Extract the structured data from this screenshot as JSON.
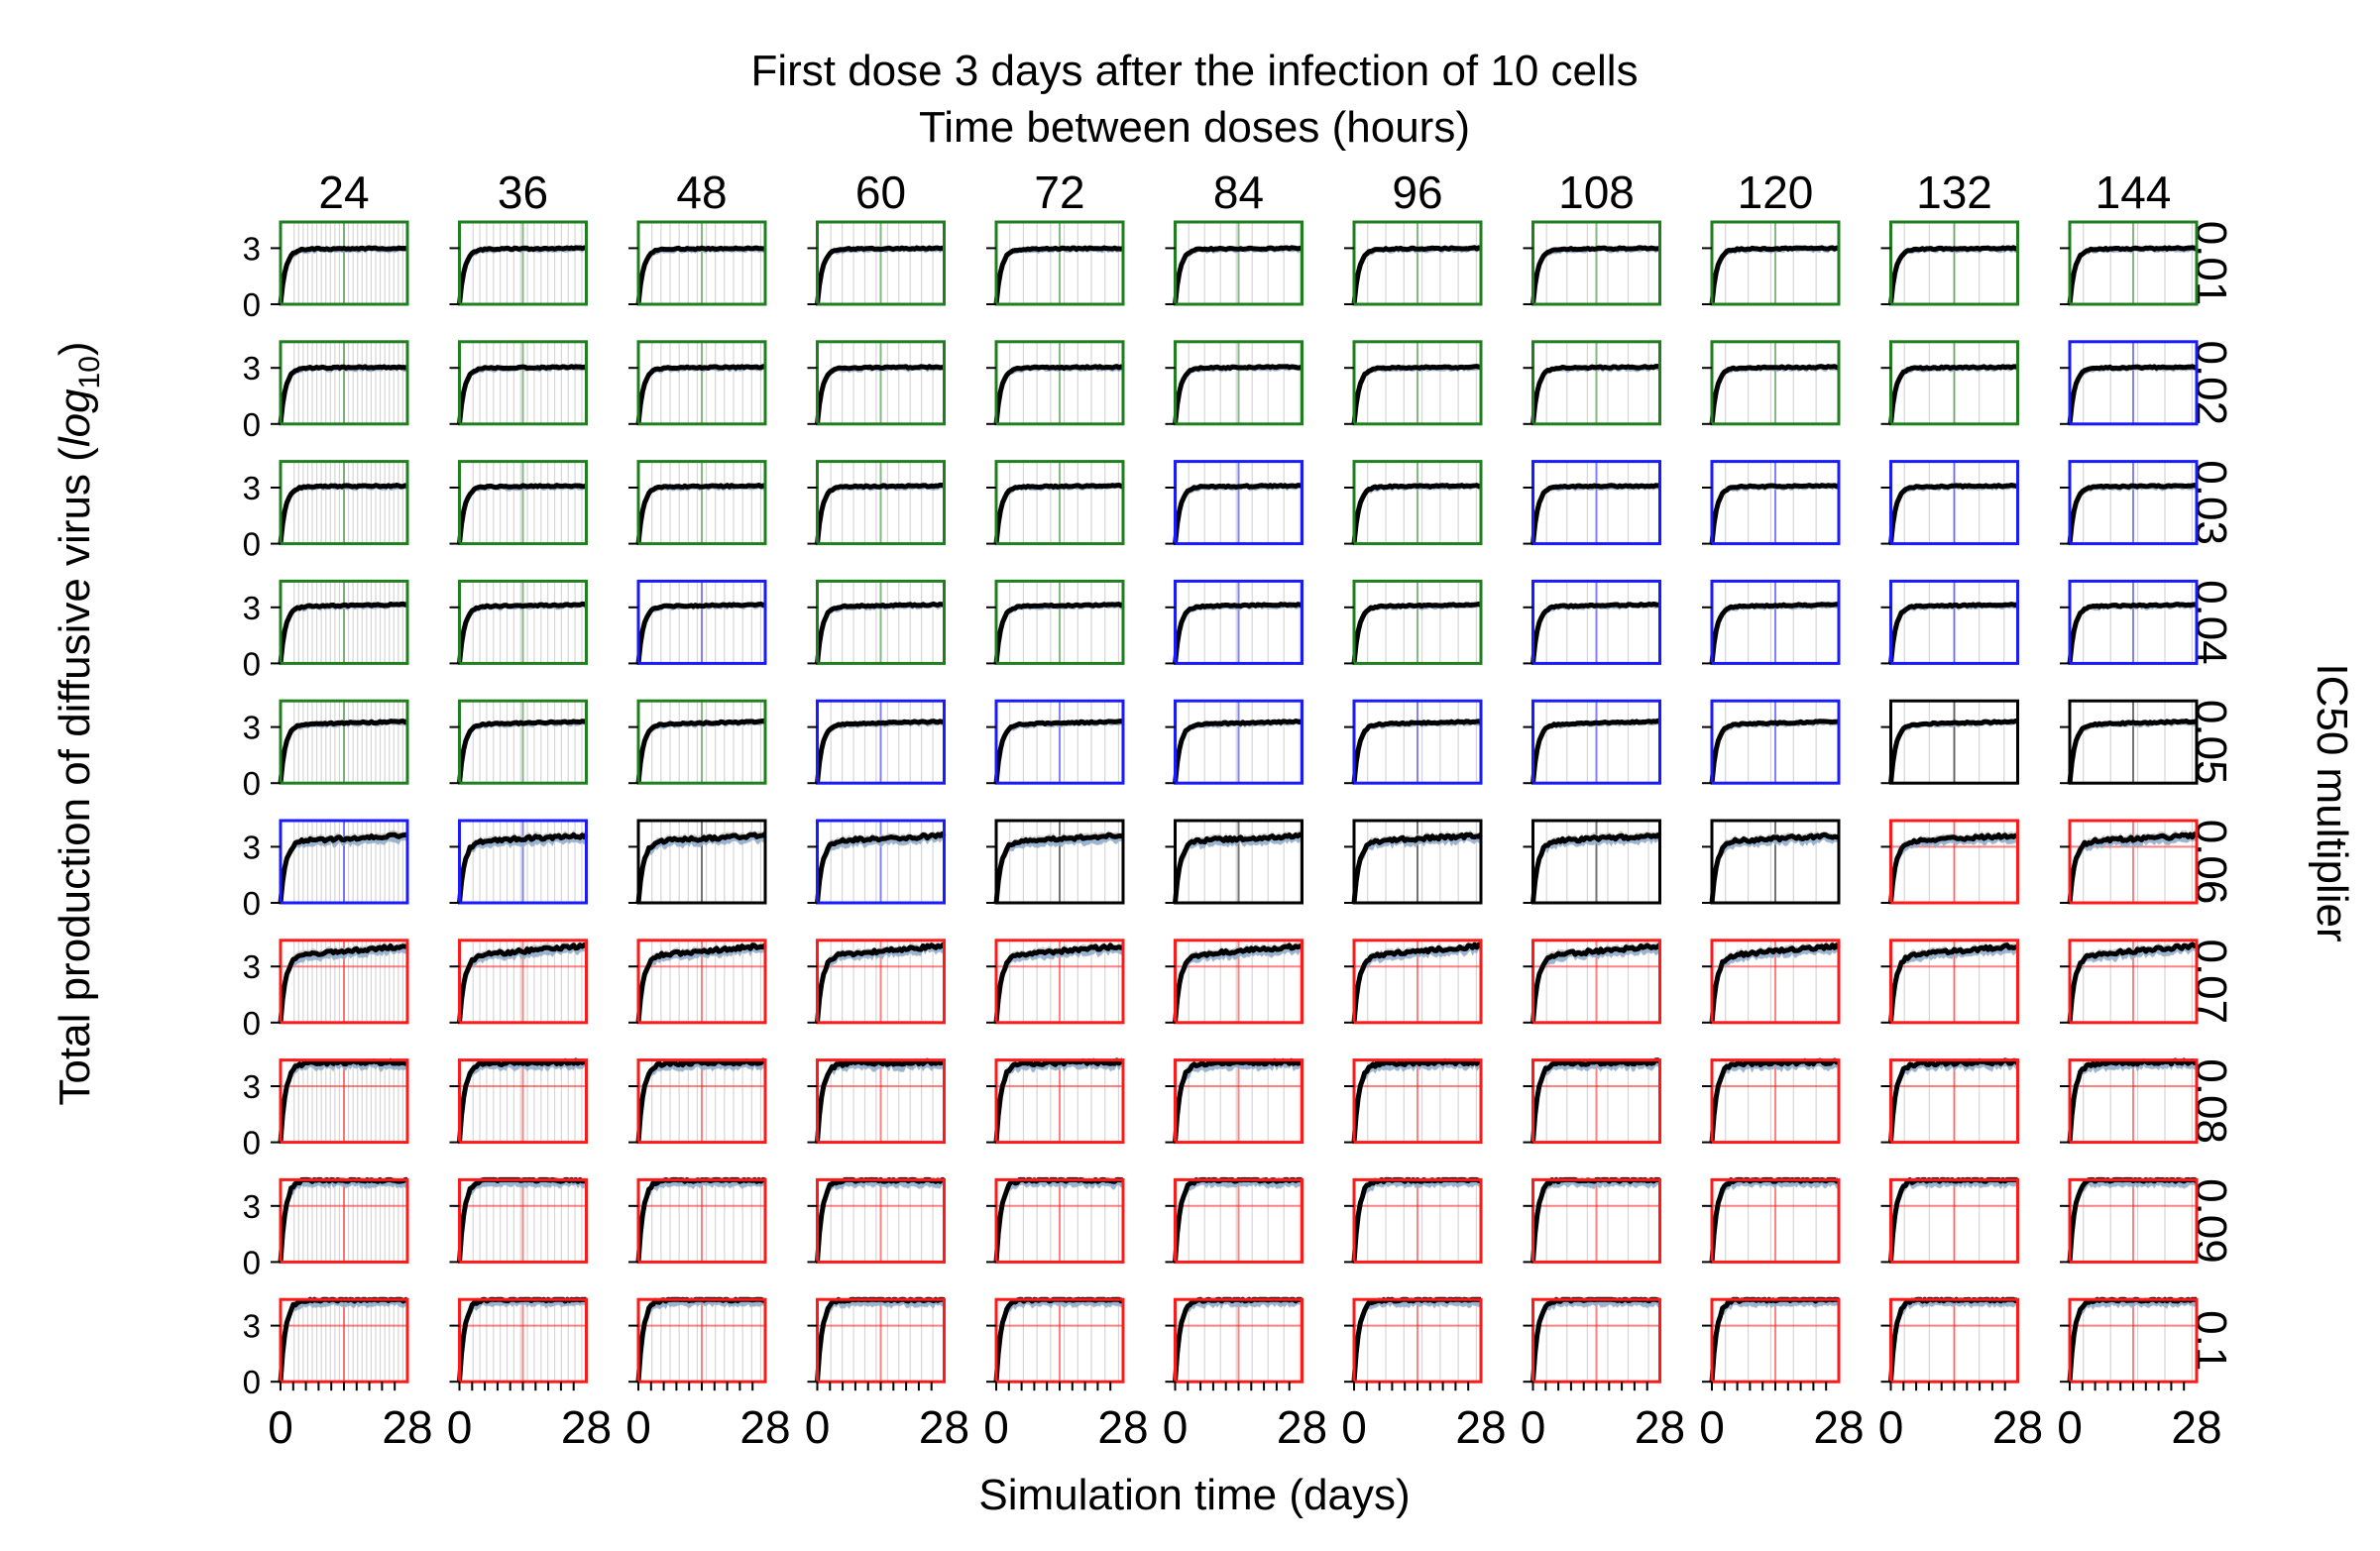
{
  "chart_data": {
    "type": "line",
    "title": "First dose 3 days after the infection of 10 cells",
    "subtitle": "Time between doses (hours)",
    "xlabel": "Simulation time (days)",
    "ylabel_prefix": "Total production of diffusive virus (",
    "ylabel_log": "log",
    "ylabel_base": "10",
    "ylabel_suffix": ")",
    "right_label": "IC50 multiplier",
    "columns": [
      "24",
      "36",
      "48",
      "60",
      "72",
      "84",
      "96",
      "108",
      "120",
      "132",
      "144"
    ],
    "rows": [
      "0.01",
      "0.02",
      "0.03",
      "0.04",
      "0.05",
      "0.06",
      "0.07",
      "0.08",
      "0.09",
      "0.1"
    ],
    "x_ticks": [
      "0",
      "28"
    ],
    "y_ticks": [
      "0",
      "3"
    ],
    "xlim": [
      0,
      28
    ],
    "ylim": [
      0,
      4.4
    ],
    "dose_start_day": 3,
    "frame_colors": {
      "green": "#1f7f1f",
      "blue": "#1a1aff",
      "black": "#000000",
      "red": "#ff1a1a"
    },
    "frame_grid": [
      [
        "green",
        "green",
        "green",
        "green",
        "green",
        "green",
        "green",
        "green",
        "green",
        "green",
        "green"
      ],
      [
        "green",
        "green",
        "green",
        "green",
        "green",
        "green",
        "green",
        "green",
        "green",
        "green",
        "blue"
      ],
      [
        "green",
        "green",
        "green",
        "green",
        "green",
        "blue",
        "green",
        "blue",
        "blue",
        "blue",
        "blue"
      ],
      [
        "green",
        "green",
        "blue",
        "green",
        "green",
        "blue",
        "green",
        "blue",
        "blue",
        "blue",
        "blue"
      ],
      [
        "green",
        "green",
        "green",
        "blue",
        "blue",
        "blue",
        "blue",
        "blue",
        "blue",
        "black",
        "black"
      ],
      [
        "blue",
        "blue",
        "black",
        "blue",
        "black",
        "black",
        "black",
        "black",
        "black",
        "red",
        "red"
      ],
      [
        "red",
        "red",
        "red",
        "red",
        "red",
        "red",
        "red",
        "red",
        "red",
        "red",
        "red"
      ],
      [
        "red",
        "red",
        "red",
        "red",
        "red",
        "red",
        "red",
        "red",
        "red",
        "red",
        "red"
      ],
      [
        "red",
        "red",
        "red",
        "red",
        "red",
        "red",
        "red",
        "red",
        "red",
        "red",
        "red"
      ],
      [
        "red",
        "red",
        "red",
        "red",
        "red",
        "red",
        "red",
        "red",
        "red",
        "red",
        "red"
      ]
    ],
    "plateau_by_row": [
      2.95,
      3.0,
      3.05,
      3.05,
      3.15,
      3.3,
      3.6,
      4.2,
      4.4,
      4.4
    ],
    "final_value_by_row": [
      3.0,
      3.05,
      3.1,
      3.15,
      3.3,
      3.6,
      4.1,
      4.3,
      4.4,
      4.4
    ],
    "series_colors": {
      "mean": "#000000",
      "band_gray": "#bbbbbb",
      "band_orange": "#f2b27a",
      "band_blue": "#7aa7d6"
    }
  }
}
